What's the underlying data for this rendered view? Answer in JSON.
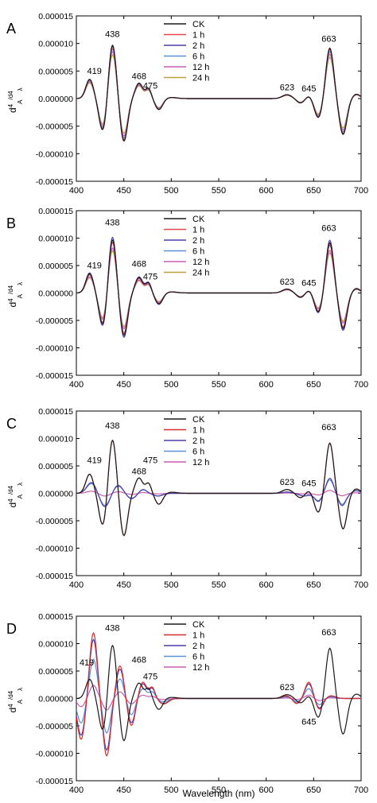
{
  "figure": {
    "xlabel": "Wavelength (nm)",
    "ylabel_main": "d",
    "ylabel_sup": "4",
    "ylabel_sub": "A",
    "ylabel_mid": "/d",
    "ylabel_sup2": "4",
    "ylabel_sub2": "λ"
  },
  "chart_data": [
    {
      "panel": "A",
      "type": "line",
      "xlim": [
        400,
        700
      ],
      "ylim": [
        -1.5e-05,
        1.5e-05
      ],
      "x_ticks": [
        "400",
        "450",
        "500",
        "550",
        "600",
        "650",
        "700"
      ],
      "y_ticks": [
        "0.000015",
        "0.000010",
        "0.000005",
        "0.000000",
        "-0.000005",
        "-0.000010",
        "-0.000015"
      ],
      "legend": [
        "CK",
        "1 h",
        "2 h",
        "6 h",
        "12 h",
        "24 h"
      ],
      "legend_position": "top-center",
      "peak_labels": [
        {
          "text": "419",
          "x": 419,
          "y": 4.5e-06
        },
        {
          "text": "438",
          "x": 438,
          "y": 1.12e-05
        },
        {
          "text": "468",
          "x": 466,
          "y": 3.5e-06
        },
        {
          "text": "475",
          "x": 478,
          "y": 1.8e-06
        },
        {
          "text": "623",
          "x": 622,
          "y": 1.5e-06
        },
        {
          "text": "645",
          "x": 645,
          "y": 1.3e-06
        },
        {
          "text": "663",
          "x": 666,
          "y": 1.03e-05
        }
      ],
      "series": [
        {
          "name": "CK",
          "color": "#1a1a1a",
          "amp": 1.0
        },
        {
          "name": "1 h",
          "color": "#e8474c",
          "amp": 0.97
        },
        {
          "name": "2 h",
          "color": "#4a3fa6",
          "amp": 1.0
        },
        {
          "name": "6 h",
          "color": "#5b8fd6",
          "amp": 0.93
        },
        {
          "name": "12 h",
          "color": "#c85db0",
          "amp": 0.88
        },
        {
          "name": "24 h",
          "color": "#b8a03a",
          "amp": 0.82
        }
      ]
    },
    {
      "panel": "B",
      "type": "line",
      "xlim": [
        400,
        700
      ],
      "ylim": [
        -1.5e-05,
        1.5e-05
      ],
      "x_ticks": [
        "400",
        "450",
        "500",
        "550",
        "600",
        "650",
        "700"
      ],
      "y_ticks": [
        "0.000015",
        "0.000010",
        "0.000005",
        "0.000000",
        "-0.000005",
        "-0.000010",
        "-0.000015"
      ],
      "legend": [
        "CK",
        "1 h",
        "2 h",
        "6 h",
        "12 h",
        "24 h"
      ],
      "legend_position": "top-center",
      "peak_labels": [
        {
          "text": "419",
          "x": 419,
          "y": 4.5e-06
        },
        {
          "text": "438",
          "x": 438,
          "y": 1.23e-05
        },
        {
          "text": "468",
          "x": 466,
          "y": 4.8e-06
        },
        {
          "text": "475",
          "x": 478,
          "y": 2.5e-06
        },
        {
          "text": "623",
          "x": 622,
          "y": 1.5e-06
        },
        {
          "text": "645",
          "x": 645,
          "y": 1.3e-06
        },
        {
          "text": "663",
          "x": 666,
          "y": 1.13e-05
        }
      ],
      "series": [
        {
          "name": "CK",
          "color": "#1a1a1a",
          "amp": 1.0
        },
        {
          "name": "1 h",
          "color": "#e8474c",
          "amp": 0.96
        },
        {
          "name": "2 h",
          "color": "#4a3fa6",
          "amp": 1.05
        },
        {
          "name": "6 h",
          "color": "#5b8fd6",
          "amp": 0.95
        },
        {
          "name": "12 h",
          "color": "#c85db0",
          "amp": 0.85
        },
        {
          "name": "24 h",
          "color": "#b8a03a",
          "amp": 0.8
        }
      ]
    },
    {
      "panel": "C",
      "type": "line",
      "xlim": [
        400,
        700
      ],
      "ylim": [
        -1.5e-05,
        1.5e-05
      ],
      "x_ticks": [
        "400",
        "450",
        "500",
        "550",
        "600",
        "650",
        "700"
      ],
      "y_ticks": [
        "0.000015",
        "0.000010",
        "0.000005",
        "0.000000",
        "-0.000005",
        "-0.000010",
        "-0.000015"
      ],
      "legend": [
        "CK",
        "1 h",
        "2 h",
        "6 h",
        "12 h"
      ],
      "legend_position": "top-center",
      "peak_labels": [
        {
          "text": "419",
          "x": 419,
          "y": 5.5e-06
        },
        {
          "text": "438",
          "x": 438,
          "y": 1.18e-05
        },
        {
          "text": "468",
          "x": 466,
          "y": 3.5e-06
        },
        {
          "text": "475",
          "x": 478,
          "y": 5.5e-06
        },
        {
          "text": "623",
          "x": 622,
          "y": 1.5e-06
        },
        {
          "text": "645",
          "x": 645,
          "y": 1.3e-06
        },
        {
          "text": "663",
          "x": 666,
          "y": 1.15e-05
        }
      ],
      "series": [
        {
          "name": "CK",
          "color": "#1a1a1a",
          "amp": 1.0
        },
        {
          "name": "1 h",
          "color": "#d62b2b",
          "amp": 1.0
        },
        {
          "name": "2 h",
          "color": "#4a3fa6",
          "amp": 0.5
        },
        {
          "name": "6 h",
          "color": "#5b8fd6",
          "amp": 0.45
        },
        {
          "name": "12 h",
          "color": "#c85db0",
          "amp": 0.1
        }
      ]
    },
    {
      "panel": "D",
      "type": "line",
      "xlim": [
        400,
        700
      ],
      "ylim": [
        -1.5e-05,
        1.5e-05
      ],
      "x_ticks": [
        "400",
        "450",
        "500",
        "550",
        "600",
        "650",
        "700"
      ],
      "y_ticks": [
        "0.000015",
        "0.000010",
        "0.000005",
        "0.000000",
        "-0.000005",
        "-0.000010",
        "-0.000015"
      ],
      "legend": [
        "CK",
        "1 h",
        "2 h",
        "6 h",
        "12 h"
      ],
      "legend_position": "top-center",
      "peak_labels": [
        {
          "text": "419",
          "x": 411,
          "y": 6e-06
        },
        {
          "text": "438",
          "x": 438,
          "y": 1.23e-05
        },
        {
          "text": "468",
          "x": 466,
          "y": 6.5e-06
        },
        {
          "text": "475",
          "x": 478,
          "y": 3.5e-06
        },
        {
          "text": "623",
          "x": 622,
          "y": 1.5e-06
        },
        {
          "text": "645",
          "x": 645,
          "y": -4.8e-06
        },
        {
          "text": "663",
          "x": 666,
          "y": 1.15e-05
        }
      ],
      "series": [
        {
          "name": "CK",
          "color": "#1a1a1a",
          "amp": 1.0
        },
        {
          "name": "1 h",
          "color": "#d62b2b",
          "amp": 1.0
        },
        {
          "name": "2 h",
          "color": "#4a3fa6",
          "amp": 0.9
        },
        {
          "name": "6 h",
          "color": "#5b8fd6",
          "amp": 0.6
        },
        {
          "name": "12 h",
          "color": "#c85db0",
          "amp": 0.2
        }
      ]
    }
  ]
}
